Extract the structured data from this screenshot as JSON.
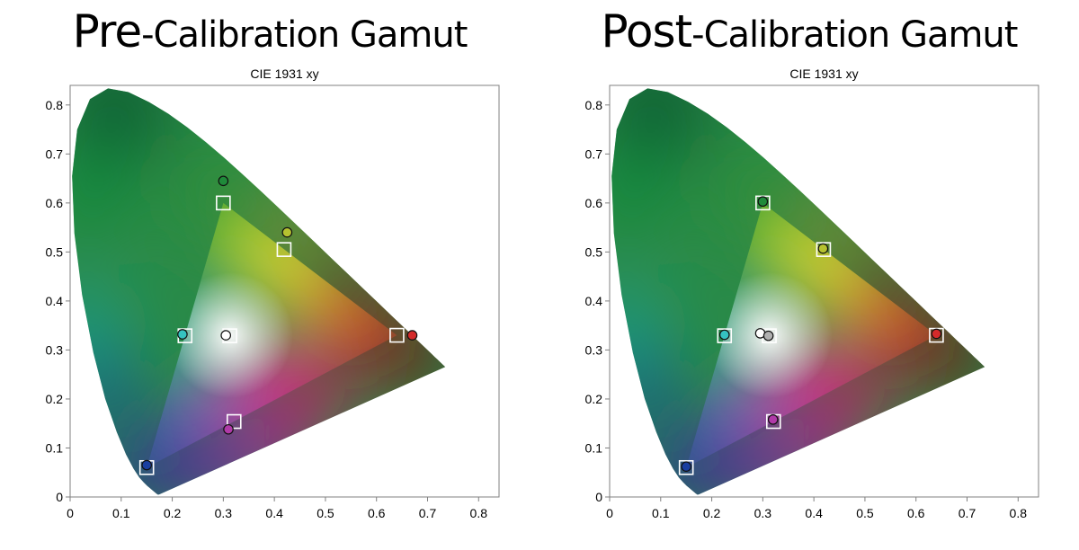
{
  "panels": [
    {
      "title_bold": "Pre",
      "title_rest": "-Calibration Gamut",
      "chart_data": {
        "type": "scatter",
        "title": "CIE 1931 xy",
        "xlabel": "",
        "ylabel": "",
        "xlim": [
          0,
          0.84
        ],
        "ylim": [
          0,
          0.84
        ],
        "xticks": [
          "0",
          "0.1",
          "0.2",
          "0.3",
          "0.4",
          "0.5",
          "0.6",
          "0.7",
          "0.8"
        ],
        "yticks": [
          "0",
          "0.1",
          "0.2",
          "0.3",
          "0.4",
          "0.5",
          "0.6",
          "0.7",
          "0.8"
        ],
        "grid": false,
        "series": [
          {
            "marker": "square",
            "points": [
              {
                "x": 0.64,
                "y": 0.33,
                "color": "red"
              },
              {
                "x": 0.3,
                "y": 0.6,
                "color": "green"
              },
              {
                "x": 0.15,
                "y": 0.06,
                "color": "blue"
              },
              {
                "x": 0.225,
                "y": 0.329,
                "color": "cyan"
              },
              {
                "x": 0.321,
                "y": 0.154,
                "color": "magenta"
              },
              {
                "x": 0.419,
                "y": 0.505,
                "color": "yellow"
              },
              {
                "x": 0.3127,
                "y": 0.329,
                "color": "white"
              }
            ]
          },
          {
            "marker": "circle",
            "points": [
              {
                "x": 0.67,
                "y": 0.33,
                "color": "#d42a2a"
              },
              {
                "x": 0.3,
                "y": 0.645,
                "color": "#1f8a3a"
              },
              {
                "x": 0.15,
                "y": 0.065,
                "color": "#1a3fa0"
              },
              {
                "x": 0.22,
                "y": 0.332,
                "color": "#35c2c0"
              },
              {
                "x": 0.31,
                "y": 0.138,
                "color": "#b03aa8"
              },
              {
                "x": 0.425,
                "y": 0.54,
                "color": "#b6c230"
              },
              {
                "x": 0.305,
                "y": 0.33,
                "color": "#ffffff"
              }
            ]
          }
        ]
      }
    },
    {
      "title_bold": "Post",
      "title_rest": "-Calibration Gamut",
      "chart_data": {
        "type": "scatter",
        "title": "CIE 1931 xy",
        "xlabel": "",
        "ylabel": "",
        "xlim": [
          0,
          0.84
        ],
        "ylim": [
          0,
          0.84
        ],
        "xticks": [
          "0",
          "0.1",
          "0.2",
          "0.3",
          "0.4",
          "0.5",
          "0.6",
          "0.7",
          "0.8"
        ],
        "yticks": [
          "0",
          "0.1",
          "0.2",
          "0.3",
          "0.4",
          "0.5",
          "0.6",
          "0.7",
          "0.8"
        ],
        "grid": false,
        "series": [
          {
            "marker": "square",
            "points": [
              {
                "x": 0.64,
                "y": 0.33,
                "color": "red"
              },
              {
                "x": 0.3,
                "y": 0.6,
                "color": "green"
              },
              {
                "x": 0.15,
                "y": 0.06,
                "color": "blue"
              },
              {
                "x": 0.225,
                "y": 0.329,
                "color": "cyan"
              },
              {
                "x": 0.321,
                "y": 0.154,
                "color": "magenta"
              },
              {
                "x": 0.419,
                "y": 0.505,
                "color": "yellow"
              },
              {
                "x": 0.3127,
                "y": 0.329,
                "color": "white"
              }
            ]
          },
          {
            "marker": "circle",
            "points": [
              {
                "x": 0.64,
                "y": 0.333,
                "color": "#d42a2a"
              },
              {
                "x": 0.3,
                "y": 0.603,
                "color": "#1f8a3a"
              },
              {
                "x": 0.15,
                "y": 0.062,
                "color": "#1a3fa0"
              },
              {
                "x": 0.225,
                "y": 0.331,
                "color": "#35c2c0"
              },
              {
                "x": 0.32,
                "y": 0.158,
                "color": "#b03aa8"
              },
              {
                "x": 0.418,
                "y": 0.507,
                "color": "#b6c230"
              },
              {
                "x": 0.295,
                "y": 0.334,
                "color": "#ffffff"
              },
              {
                "x": 0.311,
                "y": 0.329,
                "color": "#b0b0b0"
              }
            ]
          }
        ]
      }
    }
  ]
}
